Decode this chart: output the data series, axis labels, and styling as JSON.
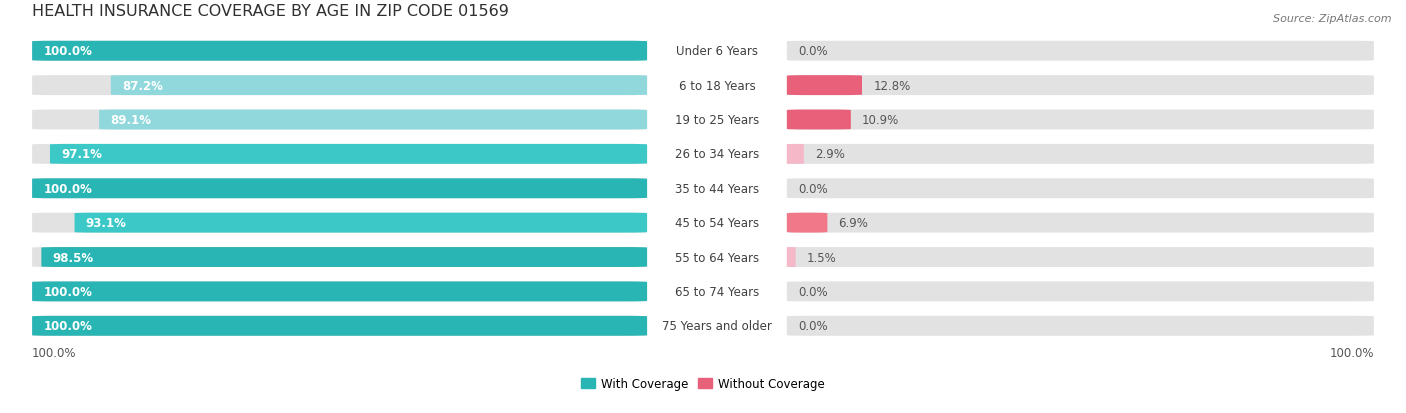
{
  "title": "HEALTH INSURANCE COVERAGE BY AGE IN ZIP CODE 01569",
  "source": "Source: ZipAtlas.com",
  "categories": [
    "Under 6 Years",
    "6 to 18 Years",
    "19 to 25 Years",
    "26 to 34 Years",
    "35 to 44 Years",
    "45 to 54 Years",
    "55 to 64 Years",
    "65 to 74 Years",
    "75 Years and older"
  ],
  "with_coverage": [
    100.0,
    87.2,
    89.1,
    97.1,
    100.0,
    93.1,
    98.5,
    100.0,
    100.0
  ],
  "without_coverage": [
    0.0,
    12.8,
    10.9,
    2.9,
    0.0,
    6.9,
    1.5,
    0.0,
    0.0
  ],
  "teal_high": "#2ab5b5",
  "teal_mid": "#3dc8c8",
  "teal_low": "#90d8dc",
  "pink_high": "#e8607a",
  "pink_mid": "#f07888",
  "pink_low": "#f5b8c8",
  "bar_bg": "#e2e2e2",
  "fig_bg": "#ffffff",
  "title_fontsize": 11.5,
  "label_fontsize": 8.5,
  "source_fontsize": 8,
  "legend_fontsize": 8.5,
  "bar_height": 0.58
}
